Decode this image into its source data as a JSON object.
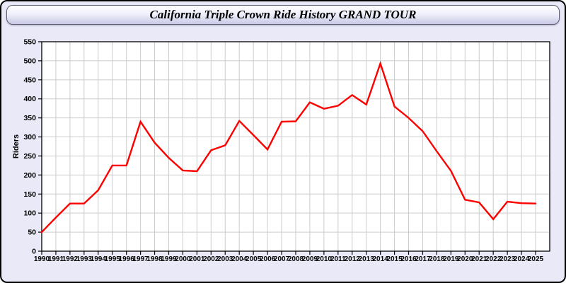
{
  "window": {
    "background_color": "#E9E9F8",
    "border_color": "#000000"
  },
  "header": {
    "title": "California Triple Crown Ride History GRAND TOUR"
  },
  "chart_data": {
    "type": "line",
    "title": "California Triple Crown Ride History GRAND TOUR",
    "xlabel": "",
    "ylabel": "Riders",
    "ylim": [
      0,
      550
    ],
    "yticks": [
      0,
      50,
      100,
      150,
      200,
      250,
      300,
      350,
      400,
      450,
      500,
      550
    ],
    "grid": true,
    "grid_color": "#CCCCCC",
    "plot_background": "#FFFFFF",
    "frame_color": "#000000",
    "legend": "none",
    "categories": [
      1990,
      1991,
      1992,
      1993,
      1994,
      1995,
      1996,
      1997,
      1998,
      1999,
      2000,
      2001,
      2002,
      2003,
      2004,
      2005,
      2006,
      2007,
      2008,
      2009,
      2010,
      2011,
      2012,
      2013,
      2014,
      2015,
      2016,
      2017,
      2018,
      2019,
      2020,
      2021,
      2022,
      2023,
      2024,
      2025
    ],
    "series": [
      {
        "name": "Riders",
        "color": "#FF0000",
        "values": [
          50,
          88,
          125,
          125,
          160,
          225,
          225,
          340,
          285,
          245,
          212,
          210,
          265,
          278,
          342,
          305,
          267,
          340,
          341,
          391,
          374,
          382,
          410,
          385,
          493,
          380,
          350,
          315,
          262,
          211,
          135,
          128,
          84,
          130,
          126,
          125
        ]
      }
    ]
  }
}
